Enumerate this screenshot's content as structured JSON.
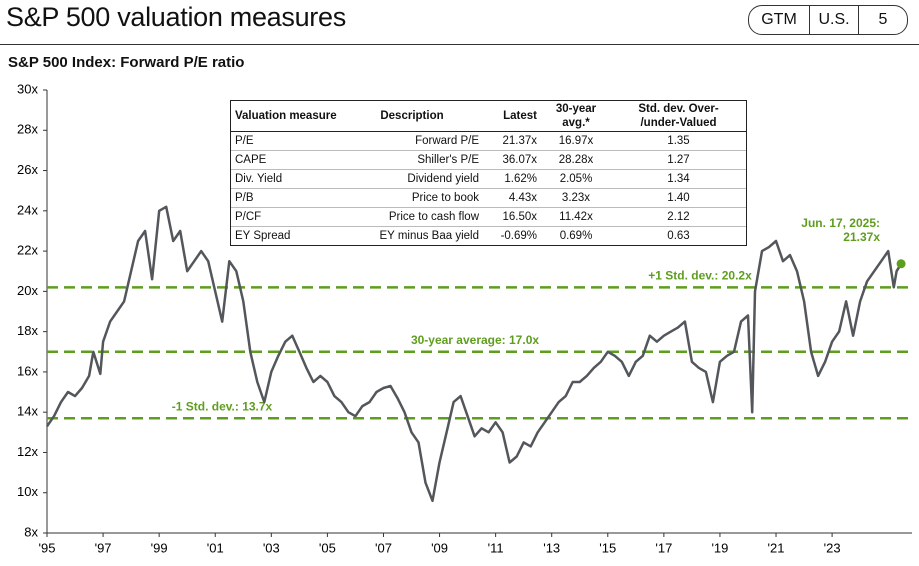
{
  "header": {
    "title": "S&P 500 valuation measures",
    "tags": [
      "GTM",
      "U.S.",
      "5"
    ]
  },
  "chart_data": {
    "type": "line",
    "subtitle": "S&P 500 Index: Forward P/E ratio",
    "color": "#53575b",
    "x": [
      1995.0,
      1995.25,
      1995.5,
      1995.75,
      1996.0,
      1996.25,
      1996.5,
      1996.65,
      1996.9,
      1997.0,
      1997.25,
      1997.5,
      1997.75,
      1998.0,
      1998.25,
      1998.5,
      1998.75,
      1999.0,
      1999.25,
      1999.5,
      1999.75,
      2000.0,
      2000.25,
      2000.5,
      2000.75,
      2001.0,
      2001.25,
      2001.5,
      2001.75,
      2002.0,
      2002.25,
      2002.5,
      2002.75,
      2003.0,
      2003.25,
      2003.5,
      2003.75,
      2004.0,
      2004.25,
      2004.5,
      2004.75,
      2005.0,
      2005.25,
      2005.5,
      2005.75,
      2006.0,
      2006.25,
      2006.5,
      2006.75,
      2007.0,
      2007.25,
      2007.5,
      2007.75,
      2008.0,
      2008.25,
      2008.5,
      2008.75,
      2009.0,
      2009.25,
      2009.5,
      2009.75,
      2010.0,
      2010.25,
      2010.5,
      2010.75,
      2011.0,
      2011.25,
      2011.5,
      2011.75,
      2012.0,
      2012.25,
      2012.5,
      2012.75,
      2013.0,
      2013.25,
      2013.5,
      2013.75,
      2014.0,
      2014.25,
      2014.5,
      2014.75,
      2015.0,
      2015.25,
      2015.5,
      2015.75,
      2016.0,
      2016.25,
      2016.5,
      2016.75,
      2017.0,
      2017.25,
      2017.5,
      2017.75,
      2018.0,
      2018.25,
      2018.5,
      2018.75,
      2019.0,
      2019.25,
      2019.5,
      2019.75,
      2020.0,
      2020.15,
      2020.25,
      2020.5,
      2020.75,
      2021.0,
      2021.25,
      2021.5,
      2021.75,
      2022.0,
      2022.25,
      2022.5,
      2022.75,
      2023.0,
      2023.25,
      2023.5,
      2023.75,
      2024.0,
      2024.25,
      2024.5,
      2024.75,
      2025.0,
      2025.2,
      2025.3,
      2025.46
    ],
    "values": [
      13.3,
      13.8,
      14.5,
      15.0,
      14.8,
      15.2,
      15.8,
      17.0,
      15.9,
      17.5,
      18.5,
      19.0,
      19.5,
      21.0,
      22.5,
      23.0,
      20.6,
      24.0,
      24.2,
      22.5,
      23.0,
      21.0,
      21.5,
      22.0,
      21.5,
      20.0,
      18.5,
      21.5,
      21.0,
      19.5,
      17.0,
      15.5,
      14.5,
      16.0,
      16.8,
      17.5,
      17.8,
      17.0,
      16.2,
      15.5,
      15.8,
      15.5,
      14.8,
      14.5,
      14.0,
      13.8,
      14.3,
      14.5,
      15.0,
      15.2,
      15.3,
      14.7,
      14.0,
      13.0,
      12.5,
      10.5,
      9.6,
      11.5,
      13.0,
      14.5,
      14.8,
      13.8,
      12.8,
      13.2,
      13.0,
      13.5,
      13.0,
      11.5,
      11.8,
      12.5,
      12.3,
      13.0,
      13.5,
      14.0,
      14.5,
      14.8,
      15.5,
      15.5,
      15.8,
      16.2,
      16.5,
      17.0,
      16.8,
      16.5,
      15.8,
      16.5,
      16.8,
      17.8,
      17.5,
      17.8,
      18.0,
      18.2,
      18.5,
      16.5,
      16.2,
      16.0,
      14.5,
      16.5,
      16.8,
      17.0,
      18.5,
      18.8,
      14.0,
      20.0,
      22.0,
      22.2,
      22.5,
      21.5,
      21.8,
      21.0,
      19.5,
      17.0,
      15.8,
      16.5,
      17.5,
      18.0,
      19.5,
      17.8,
      19.5,
      20.5,
      21.0,
      21.5,
      22.0,
      20.2,
      21.0,
      21.37
    ],
    "xlim": [
      1995,
      2025.6
    ],
    "xticks": [
      {
        "value": 1995,
        "label": "'95"
      },
      {
        "value": 1997,
        "label": "'97"
      },
      {
        "value": 1999,
        "label": "'99"
      },
      {
        "value": 2001,
        "label": "'01"
      },
      {
        "value": 2003,
        "label": "'03"
      },
      {
        "value": 2005,
        "label": "'05"
      },
      {
        "value": 2007,
        "label": "'07"
      },
      {
        "value": 2009,
        "label": "'09"
      },
      {
        "value": 2011,
        "label": "'11"
      },
      {
        "value": 2013,
        "label": "'13"
      },
      {
        "value": 2015,
        "label": "'15"
      },
      {
        "value": 2017,
        "label": "'17"
      },
      {
        "value": 2019,
        "label": "'19"
      },
      {
        "value": 2021,
        "label": "'21"
      },
      {
        "value": 2023,
        "label": "'23"
      }
    ],
    "ylim": [
      8,
      30
    ],
    "yticks": [
      {
        "value": 8,
        "label": "8x"
      },
      {
        "value": 10,
        "label": "10x"
      },
      {
        "value": 12,
        "label": "12x"
      },
      {
        "value": 14,
        "label": "14x"
      },
      {
        "value": 16,
        "label": "16x"
      },
      {
        "value": 18,
        "label": "18x"
      },
      {
        "value": 20,
        "label": "20x"
      },
      {
        "value": 22,
        "label": "22x"
      },
      {
        "value": 24,
        "label": "24x"
      },
      {
        "value": 26,
        "label": "26x"
      },
      {
        "value": 28,
        "label": "28x"
      },
      {
        "value": 30,
        "label": "30x"
      }
    ],
    "reference_color": "#5e9e1e",
    "reference_lines": [
      {
        "label": "+1 Std. dev.: 20.2x",
        "value": 20.2
      },
      {
        "label": "30-year average: 17.0x",
        "value": 17.0
      },
      {
        "label": "-1 Std. dev.: 13.7x",
        "value": 13.7
      }
    ],
    "annotation": [
      "Jun. 17, 2025:",
      "21.37x"
    ]
  },
  "table": {
    "headers": [
      "Valuation measure",
      "Description",
      "Latest",
      "30-year avg.*",
      [
        "Std. dev. Over-",
        "/under-Valued"
      ]
    ],
    "rows": [
      [
        "P/E",
        "Forward P/E",
        "21.37x",
        "16.97x",
        "1.35"
      ],
      [
        "CAPE",
        "Shiller's P/E",
        "36.07x",
        "28.28x",
        "1.27"
      ],
      [
        "Div. Yield",
        "Dividend yield",
        "1.62%",
        "2.05%",
        "1.34"
      ],
      [
        "P/B",
        "Price to book",
        "4.43x",
        "3.23x",
        "1.40"
      ],
      [
        "P/CF",
        "Price to cash flow",
        "16.50x",
        "11.42x",
        "2.12"
      ],
      [
        "EY Spread",
        "EY minus Baa yield",
        "-0.69%",
        "0.69%",
        "0.63"
      ]
    ]
  }
}
